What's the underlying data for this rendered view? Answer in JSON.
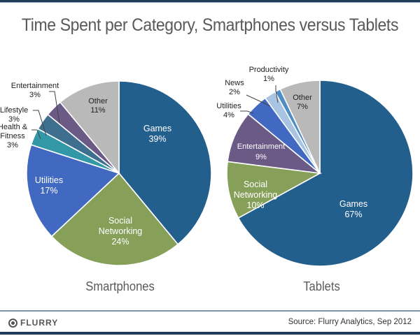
{
  "chart_data": [
    {
      "type": "pie",
      "title": "Smartphones",
      "slices": [
        {
          "label": "Games",
          "value": 39,
          "display": "39%",
          "color": "#235f8d",
          "label_color": "#ffffff",
          "leader": false
        },
        {
          "label": "Social Networking",
          "value": 24,
          "display": "24%",
          "color": "#86a05a",
          "label_color": "#ffffff",
          "leader": false
        },
        {
          "label": "Utilities",
          "value": 17,
          "display": "17%",
          "color": "#4169c1",
          "label_color": "#ffffff",
          "leader": false
        },
        {
          "label": "Health & Fitness",
          "value": 3,
          "display": "3%",
          "color": "#3297a6",
          "label_color": "#222222",
          "leader": true
        },
        {
          "label": "Lifestyle",
          "value": 3,
          "display": "3%",
          "color": "#3f6f8f",
          "label_color": "#222222",
          "leader": true
        },
        {
          "label": "Entertainment",
          "value": 3,
          "display": "3%",
          "color": "#6b5a86",
          "label_color": "#222222",
          "leader": true
        },
        {
          "label": "Other",
          "value": 11,
          "display": "11%",
          "color": "#b9b9b9",
          "label_color": "#222222",
          "leader": false
        }
      ]
    },
    {
      "type": "pie",
      "title": "Tablets",
      "slices": [
        {
          "label": "Games",
          "value": 67,
          "display": "67%",
          "color": "#235f8d",
          "label_color": "#ffffff",
          "leader": false
        },
        {
          "label": "Social Networking",
          "value": 10,
          "display": "10%",
          "color": "#86a05a",
          "label_color": "#ffffff",
          "leader": false
        },
        {
          "label": "Entertainment",
          "value": 9,
          "display": "9%",
          "color": "#6b5a86",
          "label_color": "#ffffff",
          "leader": false
        },
        {
          "label": "Utilities",
          "value": 4,
          "display": "4%",
          "color": "#4169c1",
          "label_color": "#222222",
          "leader": true
        },
        {
          "label": "News",
          "value": 2,
          "display": "2%",
          "color": "#a9c3e3",
          "label_color": "#222222",
          "leader": true
        },
        {
          "label": "Productivity",
          "value": 1,
          "display": "1%",
          "color": "#4e8dc3",
          "label_color": "#222222",
          "leader": true
        },
        {
          "label": "Other",
          "value": 7,
          "display": "7%",
          "color": "#b9b9b9",
          "label_color": "#222222",
          "leader": false
        }
      ]
    }
  ],
  "header": {
    "title": "Time Spent per Category, Smartphones versus Tablets"
  },
  "footer": {
    "logo_text": "FLURRY",
    "source": "Source: Flurry Analytics, Sep 2012"
  }
}
